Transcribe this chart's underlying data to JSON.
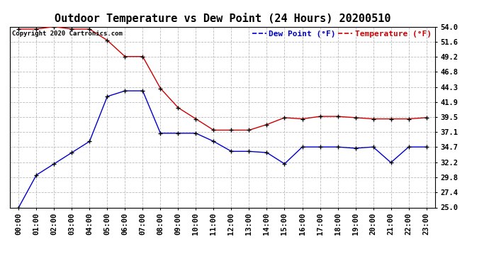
{
  "title": "Outdoor Temperature vs Dew Point (24 Hours) 20200510",
  "copyright": "Copyright 2020 Cartronics.com",
  "legend_dew": "Dew Point (°F)",
  "legend_temp": "Temperature (°F)",
  "x_labels": [
    "00:00",
    "01:00",
    "02:00",
    "03:00",
    "04:00",
    "05:00",
    "06:00",
    "07:00",
    "08:00",
    "09:00",
    "10:00",
    "11:00",
    "12:00",
    "13:00",
    "14:00",
    "15:00",
    "16:00",
    "17:00",
    "18:00",
    "19:00",
    "20:00",
    "21:00",
    "22:00",
    "23:00"
  ],
  "temperature": [
    53.6,
    53.6,
    54.0,
    53.6,
    53.6,
    51.8,
    49.2,
    49.2,
    44.1,
    41.0,
    39.2,
    37.4,
    37.4,
    37.4,
    38.3,
    39.4,
    39.2,
    39.6,
    39.6,
    39.4,
    39.2,
    39.2,
    39.2,
    39.4
  ],
  "dew_point": [
    25.0,
    30.2,
    32.0,
    33.8,
    35.6,
    42.8,
    43.7,
    43.7,
    36.9,
    36.9,
    36.9,
    35.6,
    34.0,
    34.0,
    33.8,
    32.0,
    34.7,
    34.7,
    34.7,
    34.5,
    34.7,
    32.2,
    34.7,
    34.7
  ],
  "temp_color": "#cc0000",
  "dew_color": "#0000cc",
  "background_color": "#ffffff",
  "grid_color": "#bbbbbb",
  "ylim_min": 25.0,
  "ylim_max": 54.0,
  "y_ticks": [
    25.0,
    27.4,
    29.8,
    32.2,
    34.7,
    37.1,
    39.5,
    41.9,
    44.3,
    46.8,
    49.2,
    51.6,
    54.0
  ],
  "title_fontsize": 11,
  "tick_fontsize": 7.5,
  "legend_fontsize": 8,
  "copyright_fontsize": 6.5
}
